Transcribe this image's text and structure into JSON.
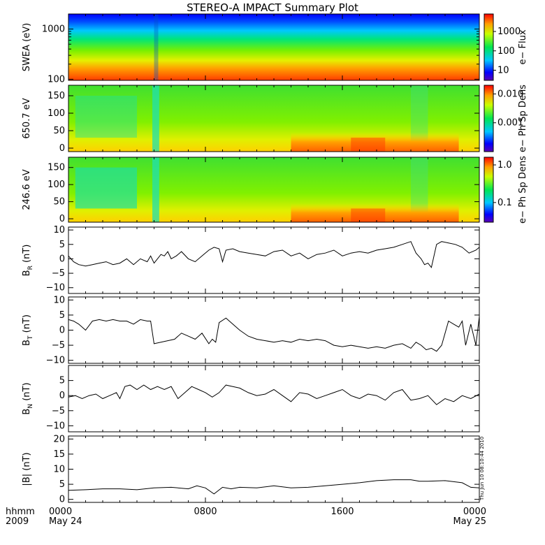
{
  "title": "STEREO-A IMPACT Summary Plot",
  "stamp": "Thu Jun 10 08:10:44 2010",
  "time_axis": {
    "row1_label": "hhmm",
    "row2_label": "2009",
    "ticks": [
      {
        "hours": 0,
        "label": "0000",
        "sublabel": "May 24"
      },
      {
        "hours": 8,
        "label": "0800",
        "sublabel": ""
      },
      {
        "hours": 16,
        "label": "1600",
        "sublabel": ""
      },
      {
        "hours": 24,
        "label": "0000",
        "sublabel": "May 25"
      }
    ],
    "range_hours": [
      0,
      24
    ]
  },
  "chart_data": [
    {
      "type": "heatmap",
      "ylabel": "SWEA (eV)",
      "yscale": "log",
      "ylim": [
        95,
        2000
      ],
      "yticks": [
        100,
        1000
      ],
      "ytick_labels": [
        "100",
        "1000"
      ],
      "colorbar": {
        "label": "e− Flux",
        "scale": "log",
        "range": [
          3,
          8000
        ],
        "ticks": [
          10,
          100,
          1000
        ],
        "tick_labels": [
          "10",
          "100",
          "1000"
        ]
      }
    },
    {
      "type": "heatmap",
      "ylabel": "650.7 eV",
      "yscale": "linear",
      "ylim": [
        -10,
        180
      ],
      "yticks": [
        0,
        50,
        100,
        150
      ],
      "ytick_labels": [
        "0",
        "50",
        "100",
        "150"
      ],
      "colorbar": {
        "label": "e− Ph Sp Dens",
        "scale": "log",
        "range": [
          0.0001,
          0.02
        ],
        "ticks": [
          0.001,
          0.01
        ],
        "tick_labels": [
          "0.001",
          "0.010"
        ]
      }
    },
    {
      "type": "heatmap",
      "ylabel": "246.6 eV",
      "yscale": "linear",
      "ylim": [
        -10,
        180
      ],
      "yticks": [
        0,
        50,
        100,
        150
      ],
      "ytick_labels": [
        "0",
        "50",
        "100",
        "150"
      ],
      "colorbar": {
        "label": "e− Ph Sp Dens",
        "scale": "log",
        "range": [
          0.03,
          1.6
        ],
        "ticks": [
          0.1,
          1.0
        ],
        "tick_labels": [
          "0.1",
          "1.0"
        ]
      }
    },
    {
      "type": "line",
      "ylabel_main": "B",
      "ylabel_sub": "R",
      "ylabel_unit": " (nT)",
      "ylim": [
        -12,
        11
      ],
      "yticks": [
        -10,
        -5,
        0,
        5,
        10
      ],
      "ytick_labels": [
        "−10",
        "−5",
        "0",
        "5",
        "10"
      ],
      "x": [
        0,
        0.3,
        0.6,
        1,
        1.4,
        1.8,
        2.2,
        2.6,
        3,
        3.4,
        3.8,
        4.2,
        4.6,
        4.8,
        5,
        5.2,
        5.4,
        5.6,
        5.8,
        6,
        6.3,
        6.6,
        7,
        7.4,
        7.8,
        8.2,
        8.5,
        8.8,
        9,
        9.2,
        9.6,
        10,
        10.5,
        11,
        11.5,
        12,
        12.5,
        13,
        13.5,
        14,
        14.5,
        15,
        15.5,
        16,
        16.5,
        17,
        17.5,
        18,
        18.5,
        19,
        19.5,
        20,
        20.3,
        20.6,
        20.8,
        21,
        21.2,
        21.5,
        21.8,
        22.2,
        22.6,
        23,
        23.4,
        23.8,
        24
      ],
      "y": [
        1,
        -1,
        -2,
        -2.5,
        -2,
        -1.5,
        -1,
        -2,
        -1.5,
        0,
        -2,
        0,
        -1,
        1,
        -1.5,
        0,
        1.5,
        1,
        2.5,
        0,
        1,
        2.5,
        0,
        -1,
        1,
        3,
        4,
        3.5,
        -1,
        3,
        3.5,
        2.5,
        2,
        1.5,
        1,
        2.5,
        3,
        1,
        2,
        0,
        1.5,
        2,
        3,
        1,
        2,
        2.5,
        2,
        3,
        3.5,
        4,
        5,
        6,
        2,
        0,
        -2,
        -1.5,
        -3,
        5,
        6,
        5.5,
        5,
        4,
        2,
        3,
        4
      ]
    },
    {
      "type": "line",
      "ylabel_main": "B",
      "ylabel_sub": "T",
      "ylabel_unit": " (nT)",
      "ylim": [
        -11,
        11
      ],
      "yticks": [
        -10,
        -5,
        0,
        5,
        10
      ],
      "ytick_labels": [
        "−10",
        "−5",
        "0",
        "5",
        "10"
      ],
      "x": [
        0,
        0.3,
        0.6,
        1,
        1.4,
        1.8,
        2.2,
        2.6,
        3,
        3.4,
        3.8,
        4.2,
        4.6,
        4.8,
        5,
        5.4,
        5.8,
        6.2,
        6.6,
        7,
        7.4,
        7.8,
        8.2,
        8.4,
        8.6,
        8.8,
        9.2,
        9.6,
        10,
        10.5,
        11,
        11.5,
        12,
        12.5,
        13,
        13.5,
        14,
        14.5,
        15,
        15.5,
        16,
        16.5,
        17,
        17.5,
        18,
        18.5,
        19,
        19.5,
        20,
        20.3,
        20.6,
        20.9,
        21.2,
        21.5,
        21.8,
        22.2,
        22.5,
        22.8,
        23,
        23.2,
        23.5,
        23.8,
        24
      ],
      "y": [
        3.5,
        3,
        2,
        0,
        3,
        3.5,
        3,
        3.5,
        3,
        3,
        2,
        3.5,
        3,
        3,
        -4.5,
        -4,
        -3.5,
        -3,
        -1,
        -2,
        -3,
        -1,
        -4.5,
        -3,
        -4,
        2.5,
        4,
        2,
        0,
        -2,
        -3,
        -3.5,
        -4,
        -3.5,
        -4,
        -3,
        -3.5,
        -3,
        -3.5,
        -5,
        -5.5,
        -5,
        -5.5,
        -6,
        -5.5,
        -6,
        -5,
        -4.5,
        -6,
        -4,
        -5,
        -6.5,
        -6,
        -7,
        -5,
        3,
        2,
        1,
        3,
        -5,
        2,
        -5,
        4.5
      ]
    },
    {
      "type": "line",
      "ylabel_main": "B",
      "ylabel_sub": "N",
      "ylabel_unit": " (nT)",
      "ylim": [
        -12,
        10
      ],
      "yticks": [
        -10,
        -5,
        0,
        5
      ],
      "ytick_labels": [
        "−10",
        "−5",
        "0",
        "5"
      ],
      "x": [
        0,
        0.4,
        0.8,
        1.2,
        1.6,
        2,
        2.4,
        2.8,
        3,
        3.3,
        3.6,
        4,
        4.4,
        4.8,
        5.2,
        5.6,
        6,
        6.4,
        6.8,
        7.2,
        7.6,
        8,
        8.4,
        8.8,
        9.2,
        9.6,
        10,
        10.5,
        11,
        11.5,
        12,
        12.5,
        13,
        13.5,
        14,
        14.5,
        15,
        15.5,
        16,
        16.5,
        17,
        17.5,
        18,
        18.5,
        19,
        19.5,
        20,
        20.5,
        21,
        21.5,
        22,
        22.5,
        23,
        23.5,
        24
      ],
      "y": [
        -0.5,
        0,
        -1,
        0,
        0.5,
        -1,
        0,
        1,
        -1,
        3,
        3.5,
        2,
        3.5,
        2,
        3,
        2,
        3,
        -1,
        1,
        3,
        2,
        1,
        -0.5,
        1,
        3.5,
        3,
        2.5,
        1,
        0,
        0.5,
        2,
        0,
        -2,
        1,
        0.5,
        -1,
        0,
        1,
        2,
        0,
        -1,
        0.5,
        0,
        -1.5,
        1,
        2,
        -1.5,
        -1,
        0,
        -3,
        -1,
        -2,
        0,
        -1,
        0.5
      ]
    },
    {
      "type": "line",
      "ylabel": "|B| (nT)",
      "ylim": [
        -1,
        21
      ],
      "yticks": [
        0,
        5,
        10,
        15,
        20
      ],
      "ytick_labels": [
        "0",
        "5",
        "10",
        "15",
        "20"
      ],
      "x": [
        0,
        1,
        2,
        3,
        4,
        5,
        6,
        7,
        7.5,
        8,
        8.5,
        9,
        9.5,
        10,
        11,
        12,
        13,
        14,
        15,
        16,
        17,
        18,
        19,
        20,
        20.5,
        21,
        22,
        23,
        23.5,
        24
      ],
      "y": [
        3,
        3.2,
        3.5,
        3.5,
        3.2,
        3.8,
        4,
        3.5,
        4.5,
        3.8,
        1.8,
        4,
        3.5,
        4,
        3.8,
        4.5,
        3.8,
        4,
        4.5,
        5,
        5.5,
        6.2,
        6.5,
        6.5,
        6,
        6,
        6.2,
        5.5,
        4,
        3.8
      ]
    }
  ],
  "colors": {
    "line": "#000000",
    "frame": "#000000"
  }
}
